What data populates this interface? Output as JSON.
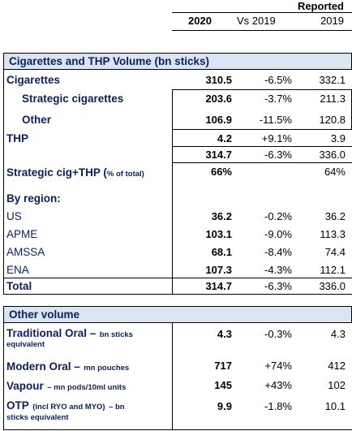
{
  "header": {
    "reported": "Reported",
    "col_2020": "2020",
    "col_vs": "Vs 2019",
    "col_2019": "2019"
  },
  "section1": {
    "title": "Cigarettes and THP Volume (bn sticks)",
    "rows": [
      {
        "label": "Cigarettes",
        "v2020": "310.5",
        "vs": "-6.5%",
        "v2019": "332.1"
      },
      {
        "label": "Strategic cigarettes",
        "v2020": "203.6",
        "vs": "-3.7%",
        "v2019": "211.3"
      },
      {
        "label": "Other",
        "v2020": "106.9",
        "vs": "-11.5%",
        "v2019": "120.8"
      },
      {
        "label": "THP",
        "v2020": "4.2",
        "vs": "+9.1%",
        "v2019": "3.9"
      },
      {
        "label": "",
        "v2020": "314.7",
        "vs": "-6.3%",
        "v2019": "336.0"
      },
      {
        "label": "Strategic cig+THP (",
        "label_small": "% of total)",
        "v2020": "66%",
        "vs": "",
        "v2019": "64%"
      }
    ],
    "by_region": "By region:",
    "regions": [
      {
        "label": "US",
        "v2020": "36.2",
        "vs": "-0.2%",
        "v2019": "36.2"
      },
      {
        "label": "APME",
        "v2020": "103.1",
        "vs": "-9.0%",
        "v2019": "113.3"
      },
      {
        "label": "AMSSA",
        "v2020": "68.1",
        "vs": "-8.4%",
        "v2019": "74.4"
      },
      {
        "label": "ENA",
        "v2020": "107.3",
        "vs": "-4.3%",
        "v2019": "112.1"
      }
    ],
    "total": {
      "label": "Total",
      "v2020": "314.7",
      "vs": "-6.3%",
      "v2019": "336.0"
    }
  },
  "section2": {
    "title": "Other volume",
    "rows": [
      {
        "label": "Traditional Oral –",
        "label_small": "bn sticks",
        "label_small2": "equivalent",
        "v2020": "4.3",
        "vs": "-0.3%",
        "v2019": "4.3"
      },
      {
        "label": "Modern Oral –",
        "label_small": "mn pouches",
        "v2020": "717",
        "vs": "+74%",
        "v2019": "412"
      },
      {
        "label": "Vapour",
        "label_small": "– mn pods/10ml units",
        "v2020": "145",
        "vs": "+43%",
        "v2019": "102"
      },
      {
        "label": "OTP",
        "label_small": "(incl RYO and MYO)",
        "label_mid": "– bn",
        "label_small2": "sticks equivalent",
        "v2020": "9.9",
        "vs": "-1.8%",
        "v2019": "10.1"
      }
    ]
  }
}
